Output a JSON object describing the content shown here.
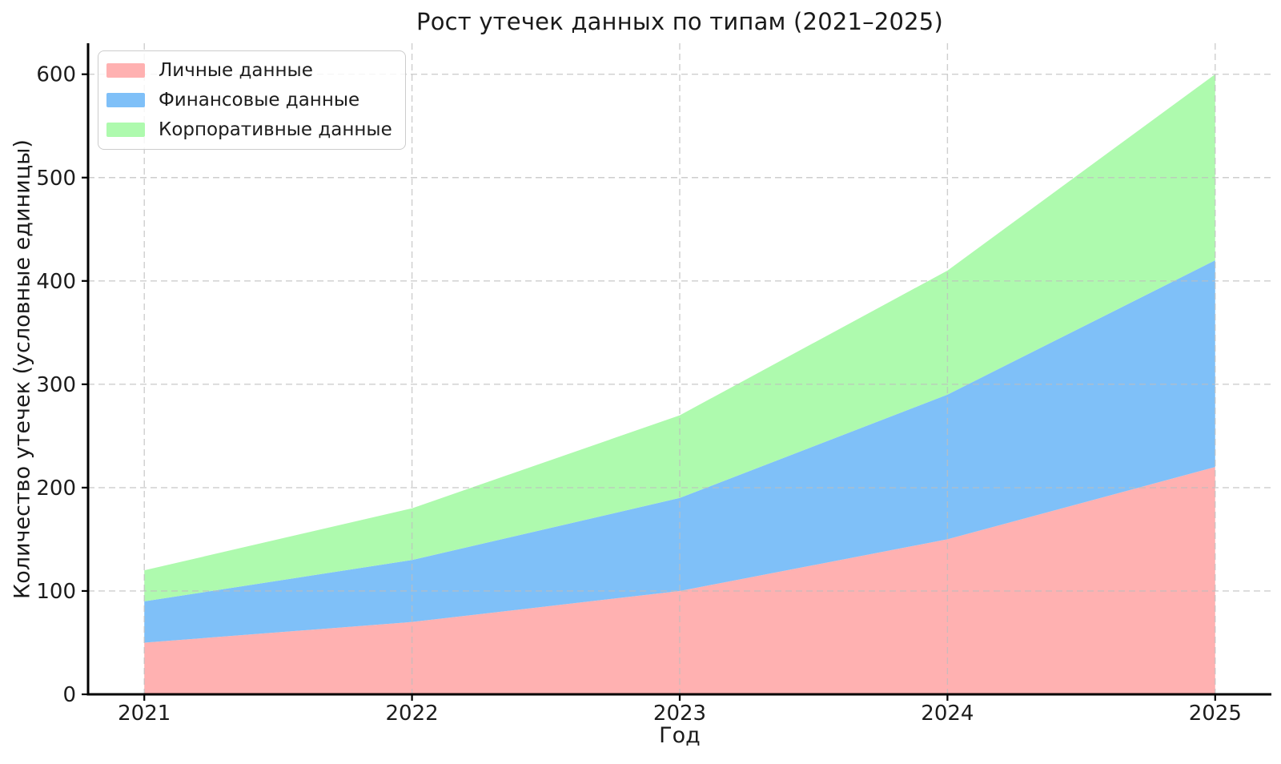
{
  "chart_data": {
    "type": "area",
    "stacked": true,
    "title": "Рост утечек данных по типам (2021–2025)",
    "xlabel": "Год",
    "ylabel": "Количество утечек (условные единицы)",
    "x": [
      2021,
      2022,
      2023,
      2024,
      2025
    ],
    "xticks": [
      "2021",
      "2022",
      "2023",
      "2024",
      "2025"
    ],
    "yticks": [
      0,
      100,
      200,
      300,
      400,
      500,
      600
    ],
    "xlim": [
      2020.79,
      2025.21
    ],
    "ylim": [
      0,
      630
    ],
    "grid": true,
    "grid_style": "dashed",
    "legend_position": "upper left",
    "series": [
      {
        "key": "personal",
        "name": "Личные данные",
        "values": [
          50,
          70,
          100,
          150,
          220
        ],
        "color": "#ffb1b1"
      },
      {
        "key": "financial",
        "name": "Финансовые данные",
        "values": [
          40,
          60,
          90,
          140,
          200
        ],
        "color": "#7fc0f8"
      },
      {
        "key": "corporate",
        "name": "Корпоративные данные",
        "values": [
          30,
          50,
          80,
          120,
          180
        ],
        "color": "#aefaae"
      }
    ],
    "cumulative_totals": [
      120,
      180,
      270,
      410,
      600
    ],
    "colors": {
      "grid": "#bdbdbd",
      "axis": "#000000",
      "text": "#1c1c1c",
      "background": "#ffffff"
    }
  }
}
